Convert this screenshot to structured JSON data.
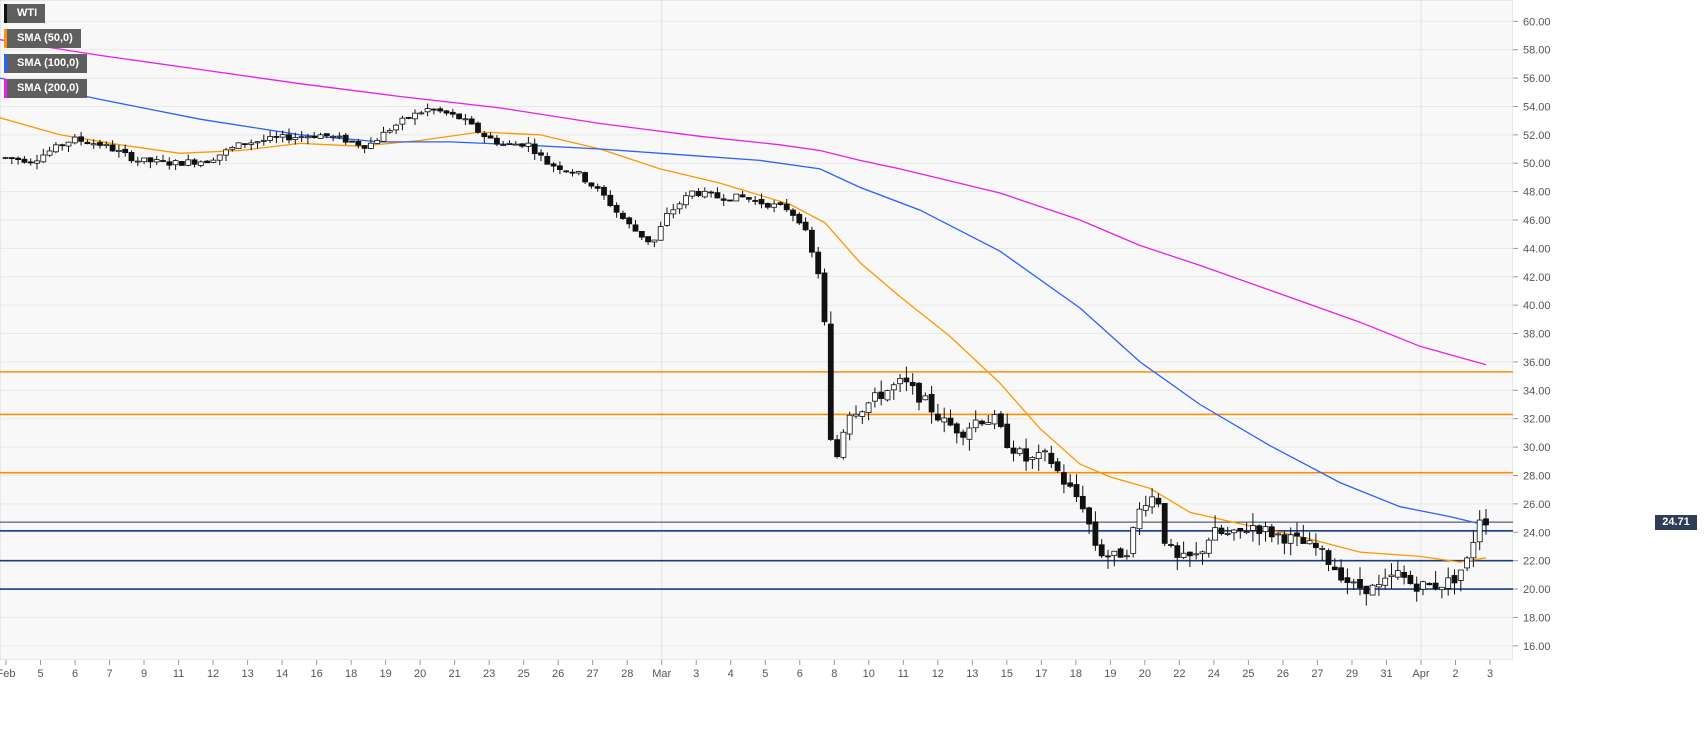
{
  "legend": [
    {
      "label": "WTI",
      "color": "#111111"
    },
    {
      "label": "SMA (50,0)",
      "color": "#ff9800"
    },
    {
      "label": "SMA (100,0)",
      "color": "#2962ff"
    },
    {
      "label": "SMA (200,0)",
      "color": "#e91ee9"
    }
  ],
  "last_price": "24.71",
  "chart_data": {
    "type": "candlestick",
    "title": "",
    "instrument": "WTI",
    "ylim": [
      15,
      61.5
    ],
    "yticks": [
      "16.00",
      "18.00",
      "20.00",
      "22.00",
      "24.00",
      "26.00",
      "28.00",
      "30.00",
      "32.00",
      "34.00",
      "36.00",
      "38.00",
      "40.00",
      "42.00",
      "44.00",
      "46.00",
      "48.00",
      "50.00",
      "52.00",
      "54.00",
      "56.00",
      "58.00",
      "60.00"
    ],
    "xticks": [
      "Feb",
      "5",
      "6",
      "7",
      "9",
      "11",
      "12",
      "13",
      "14",
      "16",
      "18",
      "19",
      "20",
      "21",
      "23",
      "25",
      "26",
      "27",
      "28",
      "Mar",
      "3",
      "4",
      "5",
      "6",
      "8",
      "10",
      "11",
      "12",
      "13",
      "15",
      "17",
      "18",
      "19",
      "20",
      "22",
      "24",
      "25",
      "26",
      "27",
      "29",
      "31",
      "Apr",
      "2",
      "3"
    ],
    "grid": true,
    "resistance_levels": [
      35.3,
      32.3,
      28.2
    ],
    "support_levels": [
      24.1,
      22.0,
      20.0
    ],
    "current_price_line": 24.71,
    "price_path": [
      [
        0,
        50.4
      ],
      [
        30,
        50.2
      ],
      [
        70,
        51.7
      ],
      [
        100,
        51.3
      ],
      [
        135,
        50.2
      ],
      [
        170,
        50.0
      ],
      [
        205,
        50.2
      ],
      [
        240,
        51.4
      ],
      [
        280,
        51.8
      ],
      [
        320,
        52.0
      ],
      [
        345,
        51.6
      ],
      [
        365,
        51.2
      ],
      [
        385,
        52.3
      ],
      [
        405,
        53.2
      ],
      [
        425,
        53.8
      ],
      [
        440,
        53.6
      ],
      [
        460,
        53.1
      ],
      [
        480,
        52.0
      ],
      [
        500,
        51.3
      ],
      [
        525,
        51.4
      ],
      [
        545,
        50.0
      ],
      [
        575,
        49.3
      ],
      [
        600,
        47.8
      ],
      [
        615,
        46.5
      ],
      [
        630,
        45.4
      ],
      [
        650,
        44.3
      ],
      [
        665,
        46.4
      ],
      [
        690,
        48.0
      ],
      [
        715,
        47.6
      ],
      [
        740,
        47.6
      ],
      [
        760,
        47.2
      ],
      [
        785,
        46.8
      ],
      [
        800,
        45.8
      ],
      [
        810,
        43.5
      ],
      [
        820,
        41.4
      ],
      [
        830,
        28.0
      ],
      [
        845,
        32.5
      ],
      [
        860,
        32.8
      ],
      [
        880,
        33.8
      ],
      [
        900,
        34.6
      ],
      [
        920,
        33.4
      ],
      [
        940,
        31.8
      ],
      [
        960,
        31.1
      ],
      [
        975,
        32.0
      ],
      [
        992,
        31.9
      ],
      [
        1005,
        30.3
      ],
      [
        1025,
        29.0
      ],
      [
        1045,
        29.4
      ],
      [
        1062,
        27.5
      ],
      [
        1080,
        26.0
      ],
      [
        1095,
        22.7
      ],
      [
        1110,
        22.2
      ],
      [
        1125,
        22.8
      ],
      [
        1140,
        26.2
      ],
      [
        1155,
        26.6
      ],
      [
        1163,
        23.2
      ],
      [
        1175,
        22.0
      ],
      [
        1195,
        22.3
      ],
      [
        1210,
        24.0
      ],
      [
        1230,
        23.7
      ],
      [
        1250,
        24.5
      ],
      [
        1270,
        23.9
      ],
      [
        1290,
        23.5
      ],
      [
        1315,
        22.8
      ],
      [
        1335,
        21.3
      ],
      [
        1350,
        20.2
      ],
      [
        1375,
        20.0
      ],
      [
        1395,
        21.1
      ],
      [
        1410,
        20.3
      ],
      [
        1430,
        20.2
      ],
      [
        1450,
        20.6
      ],
      [
        1465,
        22.0
      ],
      [
        1478,
        25.3
      ],
      [
        1487,
        24.6
      ]
    ],
    "series": [
      {
        "name": "SMA (50,0)",
        "color": "#ff9800",
        "points": [
          [
            0,
            53.2
          ],
          [
            60,
            52.0
          ],
          [
            120,
            51.3
          ],
          [
            180,
            50.7
          ],
          [
            240,
            50.9
          ],
          [
            300,
            51.4
          ],
          [
            360,
            51.2
          ],
          [
            420,
            51.6
          ],
          [
            480,
            52.2
          ],
          [
            540,
            52.0
          ],
          [
            600,
            51.0
          ],
          [
            660,
            49.6
          ],
          [
            720,
            48.6
          ],
          [
            790,
            47.1
          ],
          [
            825,
            45.8
          ],
          [
            860,
            43.0
          ],
          [
            900,
            40.6
          ],
          [
            950,
            37.8
          ],
          [
            1000,
            34.5
          ],
          [
            1040,
            31.3
          ],
          [
            1080,
            28.8
          ],
          [
            1110,
            27.9
          ],
          [
            1150,
            27.1
          ],
          [
            1190,
            25.4
          ],
          [
            1240,
            24.6
          ],
          [
            1300,
            23.7
          ],
          [
            1360,
            22.6
          ],
          [
            1420,
            22.3
          ],
          [
            1460,
            21.9
          ],
          [
            1486,
            22.2
          ]
        ]
      },
      {
        "name": "SMA (100,0)",
        "color": "#2962ff",
        "points": [
          [
            0,
            56.0
          ],
          [
            100,
            54.5
          ],
          [
            200,
            53.1
          ],
          [
            300,
            52.0
          ],
          [
            380,
            51.5
          ],
          [
            450,
            51.5
          ],
          [
            520,
            51.3
          ],
          [
            600,
            51.0
          ],
          [
            680,
            50.6
          ],
          [
            760,
            50.2
          ],
          [
            820,
            49.6
          ],
          [
            860,
            48.3
          ],
          [
            920,
            46.7
          ],
          [
            1000,
            43.8
          ],
          [
            1080,
            39.8
          ],
          [
            1140,
            36.0
          ],
          [
            1200,
            33.0
          ],
          [
            1270,
            30.1
          ],
          [
            1340,
            27.5
          ],
          [
            1400,
            25.8
          ],
          [
            1450,
            25.1
          ],
          [
            1486,
            24.5
          ]
        ]
      },
      {
        "name": "SMA (200,0)",
        "color": "#e91ee9",
        "points": [
          [
            0,
            58.7
          ],
          [
            100,
            57.6
          ],
          [
            200,
            56.6
          ],
          [
            300,
            55.6
          ],
          [
            400,
            54.7
          ],
          [
            500,
            53.9
          ],
          [
            600,
            52.8
          ],
          [
            700,
            51.9
          ],
          [
            780,
            51.3
          ],
          [
            820,
            50.9
          ],
          [
            860,
            50.2
          ],
          [
            900,
            49.6
          ],
          [
            1000,
            47.9
          ],
          [
            1080,
            46.0
          ],
          [
            1140,
            44.2
          ],
          [
            1200,
            42.8
          ],
          [
            1280,
            40.8
          ],
          [
            1360,
            38.8
          ],
          [
            1420,
            37.1
          ],
          [
            1486,
            35.8
          ]
        ]
      }
    ]
  }
}
